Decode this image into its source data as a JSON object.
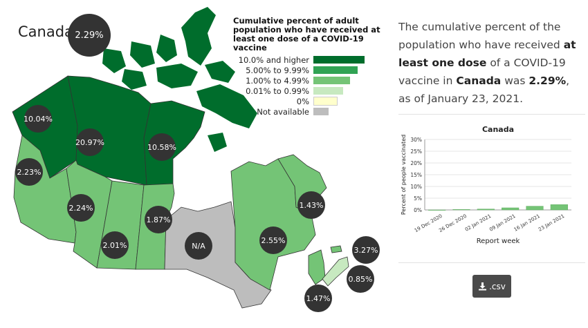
{
  "country": {
    "name": "Canada",
    "value_label": "2.29%"
  },
  "legend": {
    "title_lines": [
      "Cumulative percent of adult",
      "population who have received at",
      "least one dose of a COVID-19 vaccine"
    ],
    "items": [
      {
        "label": "10.0% and higher",
        "color": "#006d2c",
        "swatch": 1.0
      },
      {
        "label": "5.00% to 9.99%",
        "color": "#31a354",
        "swatch": 0.86
      },
      {
        "label": "1.00% to 4.99%",
        "color": "#74c476",
        "swatch": 0.72
      },
      {
        "label": "0.01% to 0.99%",
        "color": "#c7e9c0",
        "swatch": 0.58
      },
      {
        "label": "0%",
        "color": "#ffffcc",
        "swatch": 0.44
      },
      {
        "label": "Not available",
        "color": "#bdbdbd",
        "swatch": 0.3
      }
    ]
  },
  "regions": [
    {
      "id": "yt",
      "name": "Yukon",
      "value_label": "10.04%",
      "color": "#006d2c"
    },
    {
      "id": "nt",
      "name": "Northwest Territories",
      "value_label": "20.97%",
      "color": "#006d2c"
    },
    {
      "id": "nu",
      "name": "Nunavut",
      "value_label": "10.58%",
      "color": "#006d2c"
    },
    {
      "id": "bc",
      "name": "British Columbia",
      "value_label": "2.23%",
      "color": "#74c476"
    },
    {
      "id": "ab",
      "name": "Alberta",
      "value_label": "2.24%",
      "color": "#74c476"
    },
    {
      "id": "sk",
      "name": "Saskatchewan",
      "value_label": "2.01%",
      "color": "#74c476"
    },
    {
      "id": "mb",
      "name": "Manitoba",
      "value_label": "1.87%",
      "color": "#74c476"
    },
    {
      "id": "on",
      "name": "Ontario",
      "value_label": "N/A",
      "color": "#bdbdbd"
    },
    {
      "id": "qc",
      "name": "Quebec",
      "value_label": "2.55%",
      "color": "#74c476"
    },
    {
      "id": "nl",
      "name": "Newfoundland and Labrador",
      "value_label": "1.43%",
      "color": "#74c476"
    },
    {
      "id": "nb",
      "name": "New Brunswick",
      "value_label": "1.47%",
      "color": "#74c476"
    },
    {
      "id": "pe",
      "name": "Prince Edward Island",
      "value_label": "3.27%",
      "color": "#74c476"
    },
    {
      "id": "ns",
      "name": "Nova Scotia",
      "value_label": "0.85%",
      "color": "#c7e9c0"
    }
  ],
  "summary": {
    "part1": "The cumulative percent of the population who have received ",
    "bold1": "at least one dose",
    "part2": " of a COVID-19 vaccine in ",
    "bold2": "Canada",
    "part3": " was ",
    "bold3": "2.29%",
    "part4": ", as of January 23, 2021."
  },
  "chart_data": {
    "type": "bar",
    "title": "Canada",
    "xlabel": "Report week",
    "ylabel": "Percent of people vaccinated",
    "categories": [
      "19 Dec 2020",
      "26 Dec 2020",
      "02 Jan 2021",
      "09 Jan 2021",
      "16 Jan 2021",
      "23 Jan 2021"
    ],
    "values": [
      0.0,
      0.2,
      0.4,
      0.9,
      1.6,
      2.29
    ],
    "bar_color": "#74c476",
    "ylim": [
      0,
      30
    ],
    "yticks": [
      0,
      5,
      10,
      15,
      20,
      25,
      30
    ],
    "ytick_labels": [
      "0%",
      "5%",
      "10%",
      "15%",
      "20%",
      "25%",
      "30%"
    ]
  },
  "download": {
    "label": ".csv",
    "icon": "download-icon"
  }
}
